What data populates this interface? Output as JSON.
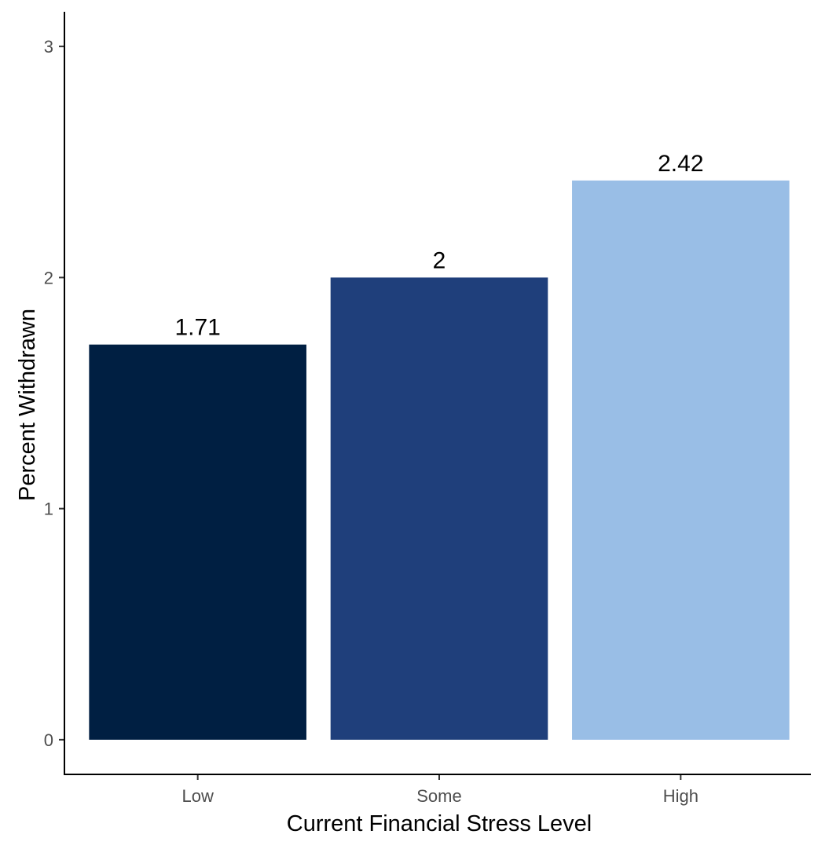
{
  "chart_data": {
    "type": "bar",
    "categories": [
      "Low",
      "Some",
      "High"
    ],
    "values": [
      1.71,
      2,
      2.42
    ],
    "data_labels": [
      "1.71",
      "2",
      "2.42"
    ],
    "colors": [
      "#001f42",
      "#1f3f7b",
      "#99bee6"
    ],
    "title": "",
    "xlabel": "Current Financial Stress Level",
    "ylabel": "Percent Withdrawn",
    "ylim": [
      -0.15,
      3.15
    ],
    "yticks": [
      0,
      1,
      2,
      3
    ],
    "ytick_labels": [
      "0",
      "1",
      "2",
      "3"
    ],
    "grid": false,
    "legend": "none"
  }
}
